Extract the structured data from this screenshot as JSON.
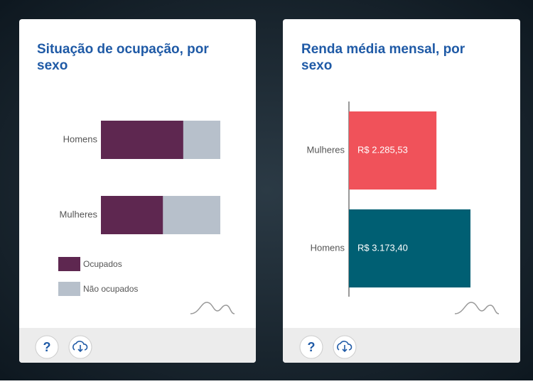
{
  "chart_data": [
    {
      "type": "bar",
      "orientation": "horizontal",
      "stacked": true,
      "title": "Situação de ocupação, por sexo",
      "categories": [
        "Homens",
        "Mulheres"
      ],
      "series": [
        {
          "name": "Ocupados",
          "color": "#5e2750",
          "values": [
            69,
            52
          ]
        },
        {
          "name": "Não ocupados",
          "color": "#b7c0cb",
          "values": [
            31,
            48
          ]
        }
      ],
      "legend": "bottom-left"
    },
    {
      "type": "bar",
      "orientation": "horizontal",
      "title": "Renda média mensal, por sexo",
      "categories": [
        "Mulheres",
        "Homens"
      ],
      "values": [
        2285.53,
        3173.4
      ],
      "value_labels": [
        "R$ 2.285,53",
        "R$ 3.173,40"
      ],
      "colors": [
        "#f0525a",
        "#005f73"
      ]
    }
  ],
  "ui": {
    "help": "?"
  }
}
